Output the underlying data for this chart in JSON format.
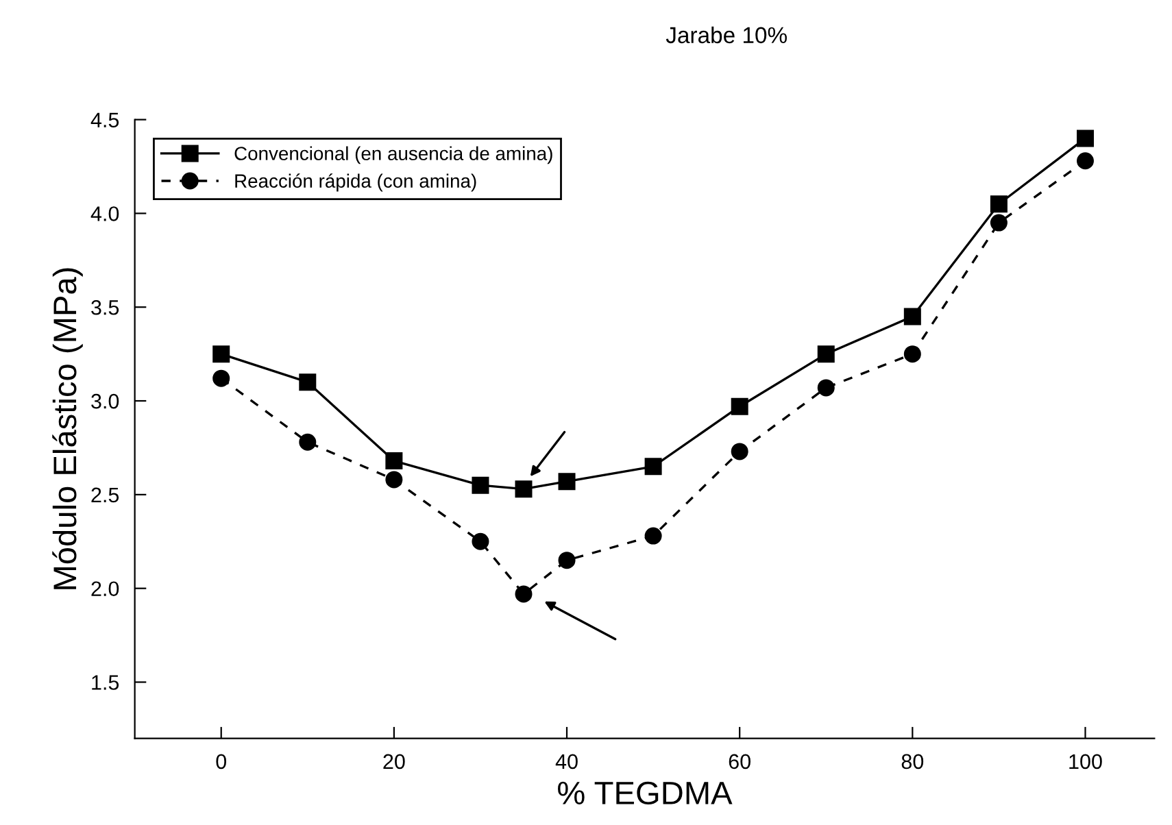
{
  "chart_data": {
    "type": "line",
    "title": "Jarabe 10%",
    "xlabel": "% TEGDMA",
    "ylabel": "Módulo Elástico (MPa)",
    "x": [
      0,
      10,
      20,
      30,
      35,
      40,
      50,
      60,
      70,
      80,
      90,
      100
    ],
    "series": [
      {
        "name": "Convencional (en ausencia de amina)",
        "color": "#000000",
        "marker": "square",
        "line_style": "solid",
        "values": [
          3.25,
          3.1,
          2.68,
          2.55,
          2.53,
          2.57,
          2.65,
          2.97,
          3.25,
          3.45,
          4.05,
          4.4
        ]
      },
      {
        "name": "Reacción rápida (con amina)",
        "color": "#000000",
        "marker": "circle",
        "line_style": "dashed",
        "values": [
          3.12,
          2.78,
          2.58,
          2.25,
          1.97,
          2.15,
          2.28,
          2.73,
          3.07,
          3.25,
          3.95,
          4.28
        ]
      }
    ],
    "xlim": [
      -10,
      108
    ],
    "xticks": [
      0,
      20,
      40,
      60,
      80,
      100
    ],
    "ylim": [
      1.2,
      4.5
    ],
    "yticks": [
      1.5,
      {
        "value": 2,
        "label": "2.0"
      },
      2.5,
      {
        "value": 3,
        "label": "3.0"
      },
      3.5,
      {
        "value": 4,
        "label": "4.0"
      },
      4.5
    ],
    "grid": false,
    "legend": "top left"
  }
}
